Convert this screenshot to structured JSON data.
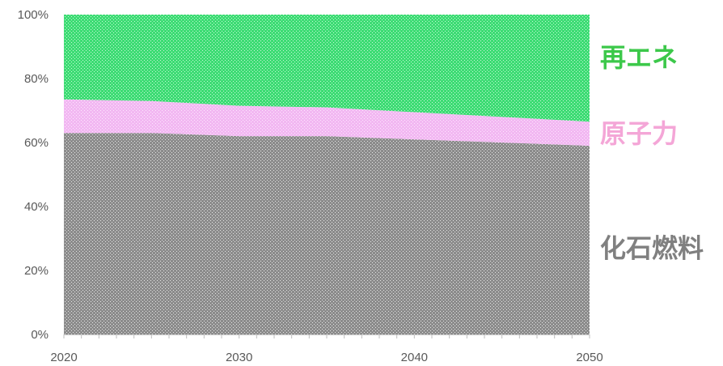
{
  "chart_data": {
    "type": "area",
    "stacked": true,
    "percent": true,
    "x": [
      2020,
      2025,
      2030,
      2035,
      2040,
      2045,
      2050
    ],
    "series": [
      {
        "name": "化石燃料",
        "values": [
          63,
          63,
          62,
          62,
          61,
          60,
          59
        ],
        "color": "#8c8c8c"
      },
      {
        "name": "原子力",
        "values": [
          10.5,
          10,
          9.5,
          9,
          8.5,
          8,
          7.5
        ],
        "color": "#f2b8f2"
      },
      {
        "name": "再エネ",
        "values": [
          26.5,
          27,
          28.5,
          29,
          30.5,
          32,
          33.5
        ],
        "color": "#3ddc74"
      }
    ],
    "label_colors": {
      "化石燃料": "#808080",
      "原子力": "#f4a6d7",
      "再エネ": "#3cc84a"
    },
    "ylim": [
      0,
      100
    ],
    "y_ticks": [
      "0%",
      "20%",
      "40%",
      "60%",
      "80%",
      "100%"
    ],
    "x_ticks": [
      "2020",
      "2030",
      "2040",
      "2050"
    ],
    "x_tick_values": [
      2020,
      2030,
      2040,
      2050
    ],
    "x_minor_tick_values": [
      2021,
      2022,
      2023,
      2024,
      2025,
      2026,
      2027,
      2028,
      2029,
      2031,
      2032,
      2033,
      2034,
      2035,
      2036,
      2037,
      2038,
      2039,
      2041,
      2042,
      2043,
      2044,
      2045,
      2046,
      2047,
      2048,
      2049
    ],
    "grid": false,
    "legend": "labels beside right end of series",
    "title": "",
    "xlabel": "",
    "ylabel": ""
  }
}
